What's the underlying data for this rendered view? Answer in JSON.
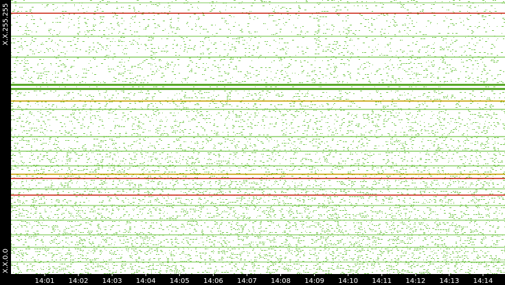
{
  "chart_data": {
    "type": "scatter",
    "title": "",
    "xlabel": "",
    "ylabel": "",
    "x_ticks": [
      "14:01",
      "14:02",
      "14:03",
      "14:04",
      "14:05",
      "14:06",
      "14:07",
      "14:08",
      "14:09",
      "14:10",
      "14:11",
      "14:12",
      "14:13",
      "14:14"
    ],
    "y_labels": {
      "top": "X.X.255.255",
      "bottom": "X.X.0.0"
    },
    "y_range": [
      0,
      65535
    ],
    "background": "#ffffff",
    "grid": false,
    "colors": {
      "low": "#78c850",
      "medium": "#5aa82a",
      "high": "#c8a000",
      "highest": "#cc2a1a",
      "axis_bg": "#000000",
      "axis_text": "#ffffff"
    },
    "bands": [
      {
        "y": 65000,
        "color": "#78c850",
        "intensity": 0.6
      },
      {
        "y": 62500,
        "color": "#cc2a1a",
        "intensity": 1.0
      },
      {
        "y": 57000,
        "color": "#78c850",
        "intensity": 0.7
      },
      {
        "y": 52000,
        "color": "#78c850",
        "intensity": 0.8
      },
      {
        "y": 45500,
        "color": "#5aa82a",
        "intensity": 1.0
      },
      {
        "y": 44500,
        "color": "#5aa82a",
        "intensity": 1.0
      },
      {
        "y": 41500,
        "color": "#c8a000",
        "intensity": 1.0
      },
      {
        "y": 39500,
        "color": "#78c850",
        "intensity": 0.8
      },
      {
        "y": 33000,
        "color": "#78c850",
        "intensity": 0.8
      },
      {
        "y": 29500,
        "color": "#78c850",
        "intensity": 0.8
      },
      {
        "y": 26000,
        "color": "#78c850",
        "intensity": 0.8
      },
      {
        "y": 24000,
        "color": "#c8a000",
        "intensity": 1.0
      },
      {
        "y": 23000,
        "color": "#cc2a1a",
        "intensity": 1.0
      },
      {
        "y": 20500,
        "color": "#78c850",
        "intensity": 0.7
      },
      {
        "y": 19000,
        "color": "#cc2a1a",
        "intensity": 1.0
      },
      {
        "y": 16500,
        "color": "#78c850",
        "intensity": 0.7
      },
      {
        "y": 13000,
        "color": "#78c850",
        "intensity": 0.7
      },
      {
        "y": 9500,
        "color": "#78c850",
        "intensity": 0.7
      },
      {
        "y": 6500,
        "color": "#78c850",
        "intensity": 0.7
      },
      {
        "y": 3000,
        "color": "#78c850",
        "intensity": 0.7
      }
    ],
    "noise_density": {
      "top": 0.12,
      "bottom": 0.32
    }
  }
}
